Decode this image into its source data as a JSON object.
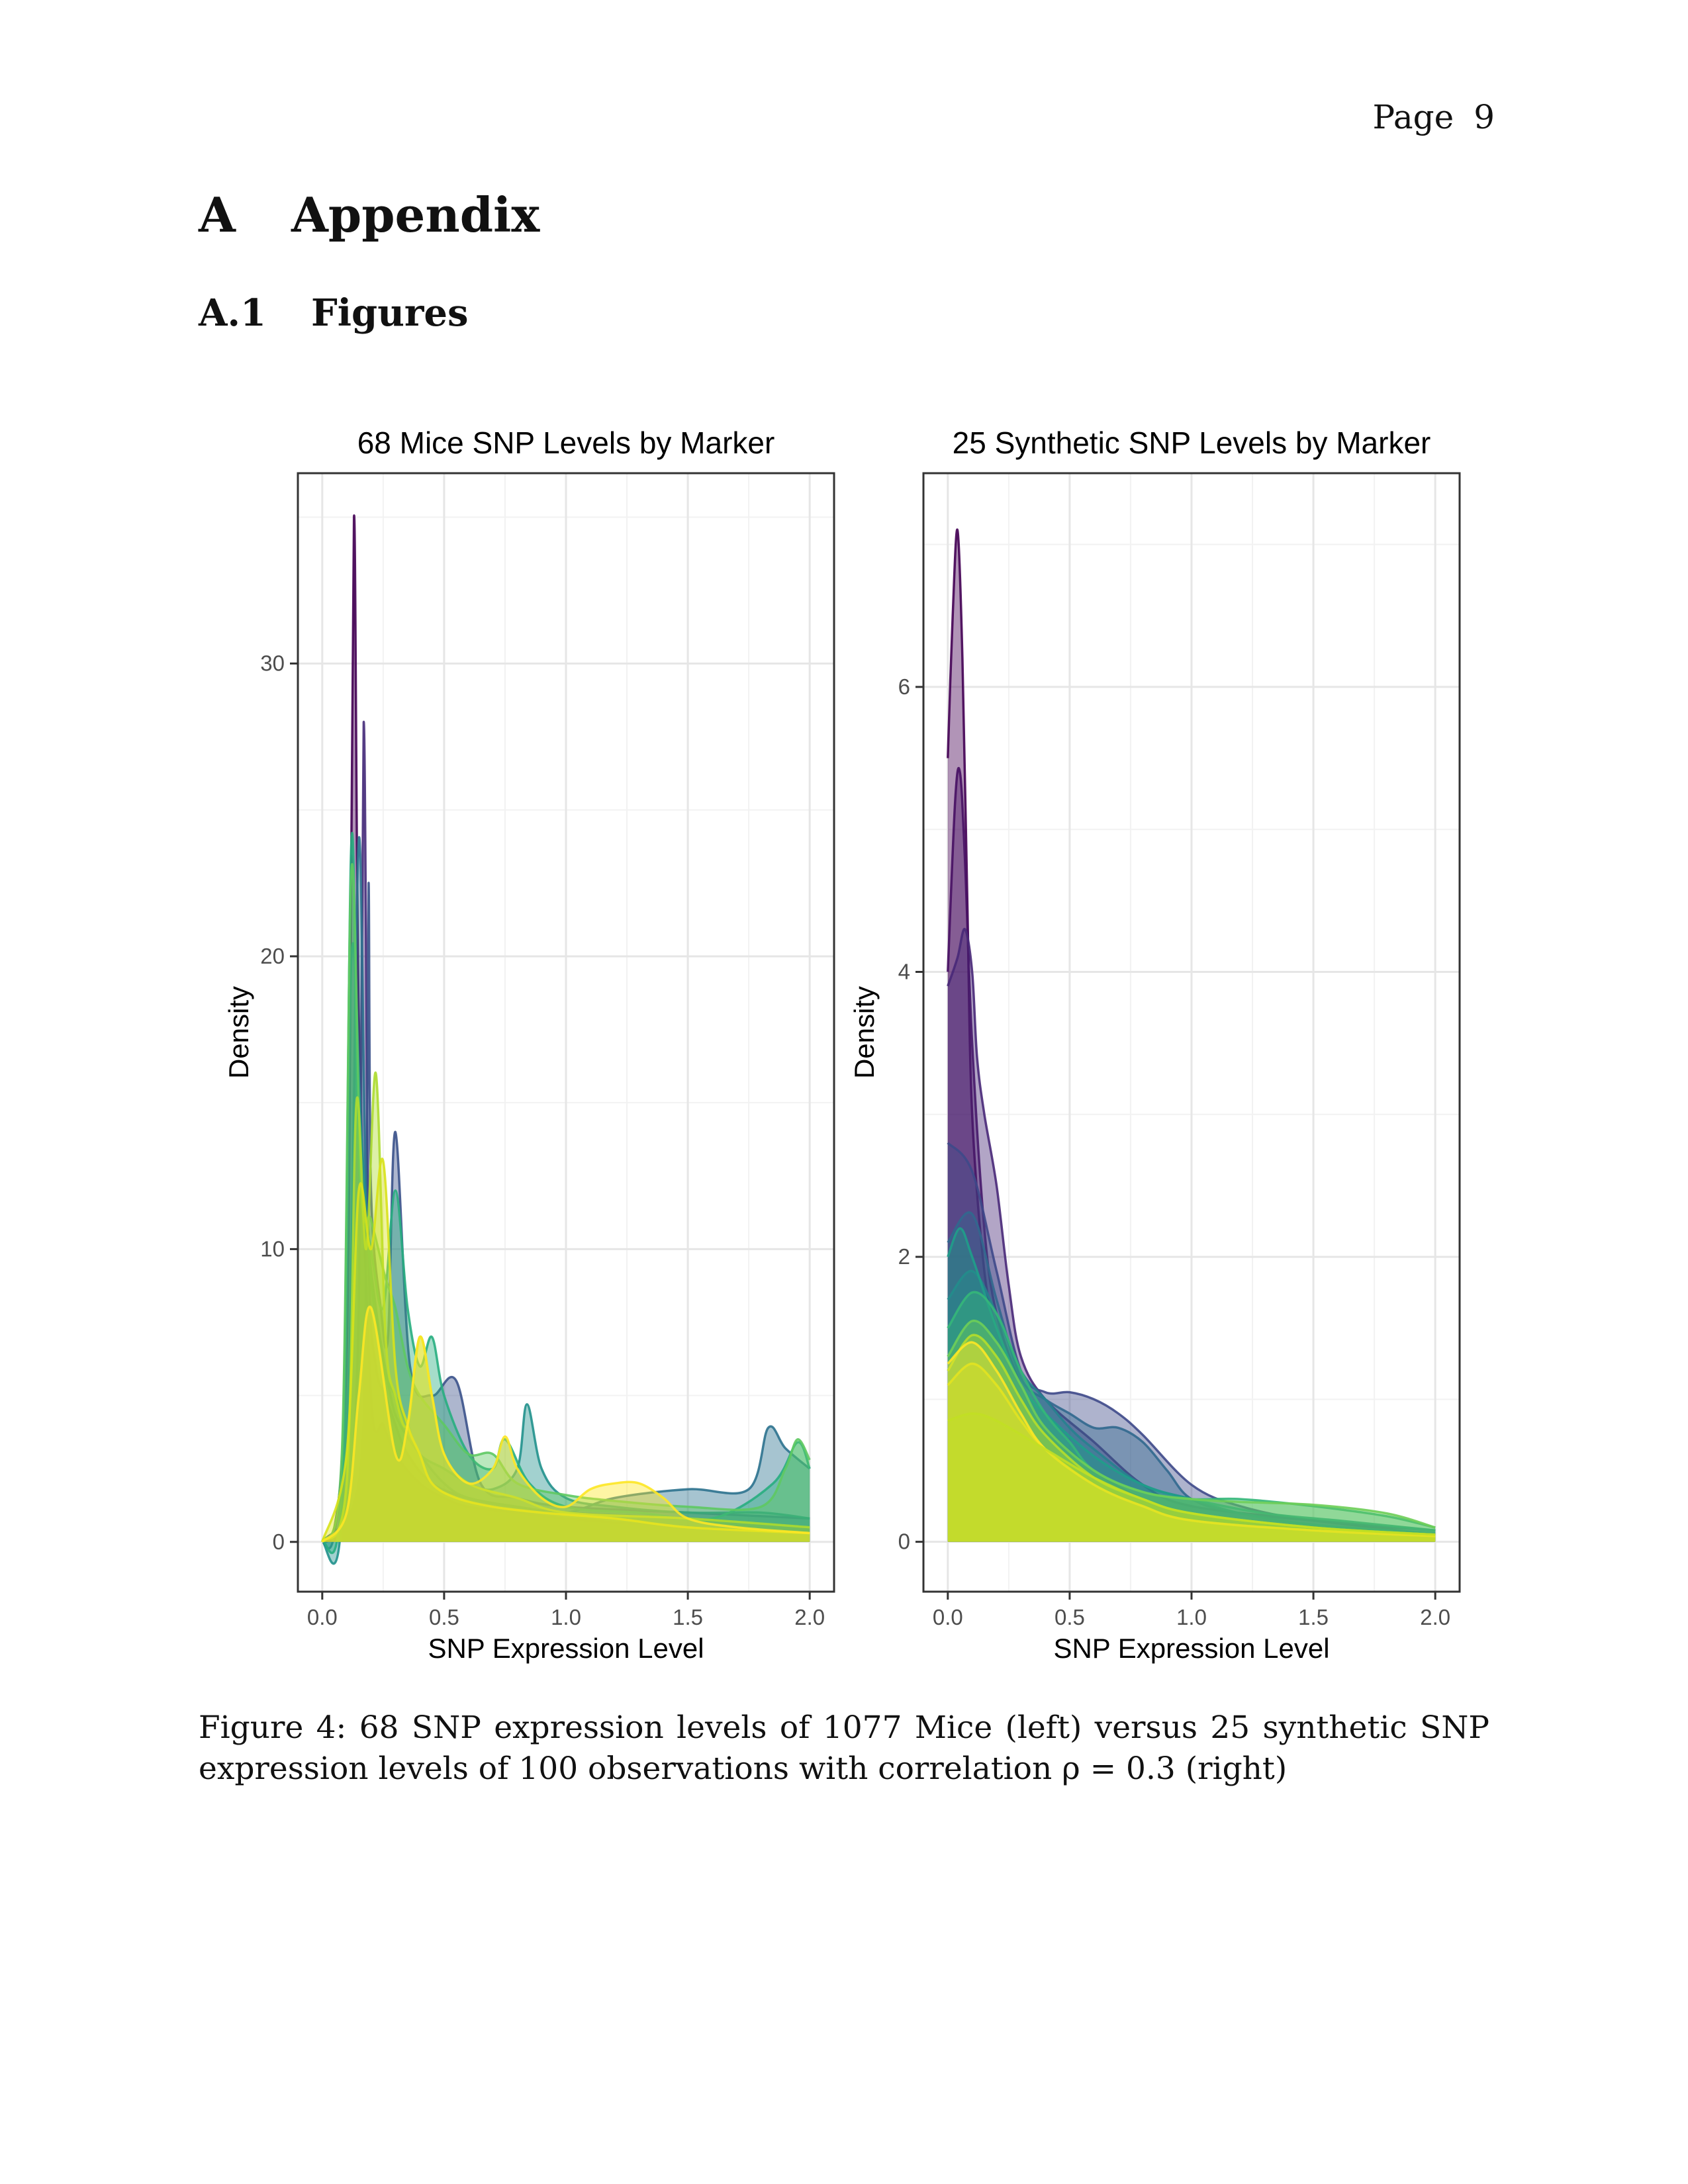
{
  "header": {
    "page_label": "Page",
    "page_number": "9"
  },
  "section": {
    "number": "A",
    "title": "Appendix"
  },
  "subsection": {
    "number": "A.1",
    "title": "Figures"
  },
  "caption": "Figure 4: 68 SNP expression levels of 1077 Mice (left) versus 25 synthetic SNP expression levels of 100 observations with correlation ρ = 0.3 (right)",
  "chart_data": [
    {
      "type": "area",
      "title": "68 Mice SNP Levels by Marker",
      "xlabel": "SNP Expression Level",
      "ylabel": "Density",
      "xlim": [
        -0.1,
        2.1
      ],
      "ylim": [
        -1.7,
        36.5
      ],
      "xticks": [
        "0.0",
        "0.5",
        "1.0",
        "1.5",
        "2.0"
      ],
      "yticks": [
        "0",
        "10",
        "20",
        "30"
      ],
      "grid": true,
      "legend": "none",
      "palette": [
        "#440154",
        "#3b528b",
        "#21918c",
        "#5ec962",
        "#b5de2b",
        "#fde725"
      ],
      "series": [
        {
          "color": "#440154",
          "x": [
            0.0,
            0.05,
            0.09,
            0.11,
            0.13,
            0.15,
            0.2,
            0.25,
            0.3,
            0.4,
            0.5,
            0.6,
            0.8,
            1.0,
            1.5,
            2.0
          ],
          "y": [
            0,
            0.5,
            4,
            12,
            35,
            18,
            5,
            4,
            3,
            2,
            1.5,
            1.2,
            1,
            0.8,
            0.5,
            0.3
          ]
        },
        {
          "color": "#472d7b",
          "x": [
            0.0,
            0.1,
            0.15,
            0.17,
            0.19,
            0.22,
            0.26,
            0.3,
            0.35,
            0.45,
            0.6,
            0.8,
            1.0,
            1.5,
            2.0
          ],
          "y": [
            0,
            1,
            8,
            28,
            10,
            6,
            5,
            4,
            3,
            2,
            1.5,
            1.2,
            1,
            0.8,
            0.5
          ]
        },
        {
          "color": "#3b528b",
          "x": [
            0.0,
            0.15,
            0.18,
            0.19,
            0.2,
            0.24,
            0.27,
            0.3,
            0.36,
            0.45,
            0.55,
            0.65,
            0.8,
            1.0,
            1.5,
            2.0
          ],
          "y": [
            0,
            2,
            10,
            22.5,
            12,
            8,
            7,
            14,
            6,
            5,
            5.5,
            2,
            1.5,
            1.2,
            1,
            0.8
          ]
        },
        {
          "color": "#2c728e",
          "x": [
            0.0,
            0.05,
            0.11,
            0.15,
            0.18,
            0.22,
            0.28,
            0.32,
            0.4,
            0.5,
            0.6,
            0.8,
            1.0,
            1.2,
            1.5,
            1.75,
            1.83,
            1.9,
            2.0
          ],
          "y": [
            0,
            0.3,
            6,
            24,
            12,
            8,
            5,
            4,
            3,
            2,
            1.5,
            1.2,
            1,
            1.5,
            1.8,
            1.8,
            3.9,
            3.2,
            2.5
          ]
        },
        {
          "color": "#21918c",
          "x": [
            0.0,
            0.08,
            0.12,
            0.16,
            0.2,
            0.25,
            0.3,
            0.35,
            0.4,
            0.5,
            0.6,
            0.7,
            0.8,
            0.84,
            0.9,
            1.0,
            1.2,
            1.5,
            1.8,
            2.0
          ],
          "y": [
            0,
            1,
            20,
            14,
            9,
            6,
            5,
            4,
            3,
            2.5,
            2,
            1.8,
            2.5,
            4.7,
            2.5,
            1.5,
            1.2,
            1,
            1,
            0.8
          ]
        },
        {
          "color": "#28ae80",
          "x": [
            0.0,
            0.08,
            0.12,
            0.15,
            0.2,
            0.25,
            0.3,
            0.35,
            0.4,
            0.45,
            0.5,
            0.6,
            0.7,
            0.75,
            0.85,
            1.0,
            1.3,
            1.6,
            1.85,
            1.95,
            2.0
          ],
          "y": [
            0,
            2,
            24,
            13,
            10,
            8,
            12,
            8,
            6,
            7,
            5,
            3,
            2.5,
            3.5,
            2,
            1.2,
            1,
            0.8,
            2,
            3.4,
            2.5
          ]
        },
        {
          "color": "#5ec962",
          "x": [
            0.0,
            0.08,
            0.12,
            0.16,
            0.2,
            0.26,
            0.3,
            0.35,
            0.4,
            0.5,
            0.6,
            0.7,
            0.8,
            1.0,
            1.2,
            1.5,
            1.8,
            1.9,
            1.95,
            2.0
          ],
          "y": [
            0,
            3,
            23,
            12,
            11,
            9,
            8,
            6,
            5,
            4,
            3,
            3,
            2,
            1.6,
            1.4,
            1.2,
            1.2,
            2.5,
            3.5,
            2.8
          ]
        },
        {
          "color": "#addc30",
          "x": [
            0.0,
            0.1,
            0.14,
            0.18,
            0.22,
            0.26,
            0.3,
            0.35,
            0.4,
            0.45,
            0.5,
            0.6,
            0.8,
            1.0,
            1.5,
            2.0
          ],
          "y": [
            0,
            2,
            15,
            10,
            16,
            7,
            5,
            4,
            7,
            5,
            3,
            2,
            1.5,
            1,
            0.8,
            0.5
          ]
        },
        {
          "color": "#d8e219",
          "x": [
            0.0,
            0.1,
            0.15,
            0.2,
            0.25,
            0.3,
            0.35,
            0.4,
            0.45,
            0.55,
            0.7,
            0.9,
            1.2,
            1.5,
            2.0
          ],
          "y": [
            0,
            3,
            12,
            10,
            13,
            6,
            4,
            3,
            2,
            1.5,
            1.2,
            1,
            0.8,
            0.5,
            0.3
          ]
        },
        {
          "color": "#fde725",
          "x": [
            0.0,
            0.1,
            0.15,
            0.2,
            0.3,
            0.35,
            0.4,
            0.45,
            0.5,
            0.6,
            0.7,
            0.75,
            0.8,
            0.9,
            1.0,
            1.1,
            1.2,
            1.3,
            1.4,
            1.5,
            1.7,
            2.0
          ],
          "y": [
            0,
            1,
            5,
            8,
            3,
            4,
            7,
            5,
            3,
            2,
            2.5,
            3.6,
            2.5,
            1.5,
            1.2,
            1.8,
            2,
            2,
            1.5,
            0.8,
            0.5,
            0.3
          ]
        }
      ]
    },
    {
      "type": "area",
      "title": "25 Synthetic SNP Levels by Marker",
      "xlabel": "SNP Expression Level",
      "ylabel": "Density",
      "xlim": [
        -0.1,
        2.1
      ],
      "ylim": [
        -0.35,
        7.5
      ],
      "xticks": [
        "0.0",
        "0.5",
        "1.0",
        "1.5",
        "2.0"
      ],
      "yticks": [
        "0",
        "2",
        "4",
        "6"
      ],
      "grid": true,
      "legend": "none",
      "palette": [
        "#440154",
        "#3b528b",
        "#21918c",
        "#5ec962",
        "#b5de2b",
        "#fde725"
      ],
      "series": [
        {
          "color": "#440154",
          "x": [
            0.0,
            0.02,
            0.04,
            0.06,
            0.08,
            0.1,
            0.15,
            0.2,
            0.3,
            0.4,
            0.6,
            0.8,
            1.0,
            1.5,
            2.0
          ],
          "y": [
            5.5,
            6.5,
            7.1,
            6.2,
            4.5,
            3,
            1.9,
            1.5,
            1.1,
            0.8,
            0.5,
            0.3,
            0.2,
            0.1,
            0.05
          ]
        },
        {
          "color": "#471063",
          "x": [
            0.0,
            0.03,
            0.05,
            0.07,
            0.1,
            0.15,
            0.2,
            0.3,
            0.4,
            0.6,
            0.8,
            1.0,
            1.5,
            2.0
          ],
          "y": [
            4,
            5.2,
            5.4,
            4.8,
            3.5,
            2.2,
            1.6,
            1.1,
            0.8,
            0.5,
            0.3,
            0.2,
            0.1,
            0.05
          ]
        },
        {
          "color": "#482878",
          "x": [
            0.0,
            0.04,
            0.07,
            0.1,
            0.12,
            0.15,
            0.2,
            0.25,
            0.3,
            0.4,
            0.6,
            0.8,
            1.0,
            1.5,
            2.0
          ],
          "y": [
            3.9,
            4.1,
            4.3,
            4,
            3.4,
            3,
            2.5,
            1.8,
            1.3,
            1,
            0.7,
            0.4,
            0.25,
            0.15,
            0.05
          ]
        },
        {
          "color": "#3e4989",
          "x": [
            0.0,
            0.1,
            0.2,
            0.3,
            0.4,
            0.5,
            0.6,
            0.7,
            0.8,
            1.0,
            1.2,
            1.5,
            2.0
          ],
          "y": [
            2.8,
            2.6,
            1.9,
            1.2,
            1.05,
            1.05,
            1,
            0.9,
            0.75,
            0.4,
            0.25,
            0.15,
            0.08
          ]
        },
        {
          "color": "#31688e",
          "x": [
            0.0,
            0.1,
            0.2,
            0.3,
            0.4,
            0.5,
            0.6,
            0.7,
            0.8,
            0.9,
            1.0,
            1.2,
            1.5,
            2.0
          ],
          "y": [
            2.1,
            2.3,
            1.7,
            1.15,
            1,
            0.9,
            0.8,
            0.8,
            0.7,
            0.5,
            0.3,
            0.2,
            0.15,
            0.08
          ]
        },
        {
          "color": "#26828e",
          "x": [
            0.0,
            0.1,
            0.2,
            0.3,
            0.4,
            0.5,
            0.6,
            0.8,
            1.0,
            1.2,
            1.5,
            2.0
          ],
          "y": [
            1.7,
            1.9,
            1.6,
            1.2,
            1,
            0.8,
            0.65,
            0.4,
            0.3,
            0.2,
            0.12,
            0.06
          ]
        },
        {
          "color": "#1f9e89",
          "x": [
            0.0,
            0.05,
            0.1,
            0.2,
            0.3,
            0.4,
            0.6,
            0.8,
            1.0,
            1.3,
            1.6,
            2.0
          ],
          "y": [
            2,
            2.2,
            2,
            1.5,
            1.1,
            0.9,
            0.6,
            0.4,
            0.3,
            0.2,
            0.15,
            0.08
          ]
        },
        {
          "color": "#35b779",
          "x": [
            0.0,
            0.1,
            0.2,
            0.3,
            0.4,
            0.5,
            0.6,
            0.8,
            1.0,
            1.2,
            1.5,
            1.8,
            2.0
          ],
          "y": [
            1.5,
            1.75,
            1.6,
            1.2,
            0.9,
            0.7,
            0.5,
            0.35,
            0.3,
            0.3,
            0.25,
            0.18,
            0.1
          ]
        },
        {
          "color": "#6ece58",
          "x": [
            0.0,
            0.1,
            0.2,
            0.3,
            0.4,
            0.6,
            0.8,
            1.0,
            1.2,
            1.5,
            1.8,
            2.0
          ],
          "y": [
            1.3,
            1.55,
            1.4,
            1.1,
            0.8,
            0.5,
            0.35,
            0.3,
            0.28,
            0.26,
            0.2,
            0.1
          ]
        },
        {
          "color": "#b5de2b",
          "x": [
            0.0,
            0.1,
            0.2,
            0.3,
            0.4,
            0.6,
            0.8,
            1.0,
            1.5,
            2.0
          ],
          "y": [
            1.2,
            1.45,
            1.3,
            1,
            0.75,
            0.45,
            0.3,
            0.2,
            0.1,
            0.05
          ]
        },
        {
          "color": "#d0e11c",
          "x": [
            0.0,
            0.1,
            0.2,
            0.3,
            0.4,
            0.6,
            0.8,
            1.0,
            1.5,
            2.0
          ],
          "y": [
            1.1,
            1.25,
            1.1,
            0.85,
            0.65,
            0.4,
            0.25,
            0.15,
            0.08,
            0.04
          ]
        },
        {
          "color": "#fde725",
          "x": [
            0.0,
            0.1,
            0.2,
            0.3,
            0.4,
            0.6,
            0.8,
            1.0,
            1.5,
            2.0
          ],
          "y": [
            1.25,
            1.4,
            1.2,
            0.9,
            0.65,
            0.4,
            0.25,
            0.15,
            0.08,
            0.04
          ]
        },
        {
          "color": "#c2df23",
          "x": [
            0.0,
            0.1,
            0.2,
            0.4,
            0.6,
            0.8,
            1.0,
            1.5,
            2.0
          ],
          "y": [
            0.85,
            0.9,
            0.85,
            0.65,
            0.45,
            0.3,
            0.2,
            0.1,
            0.05
          ]
        }
      ]
    }
  ]
}
